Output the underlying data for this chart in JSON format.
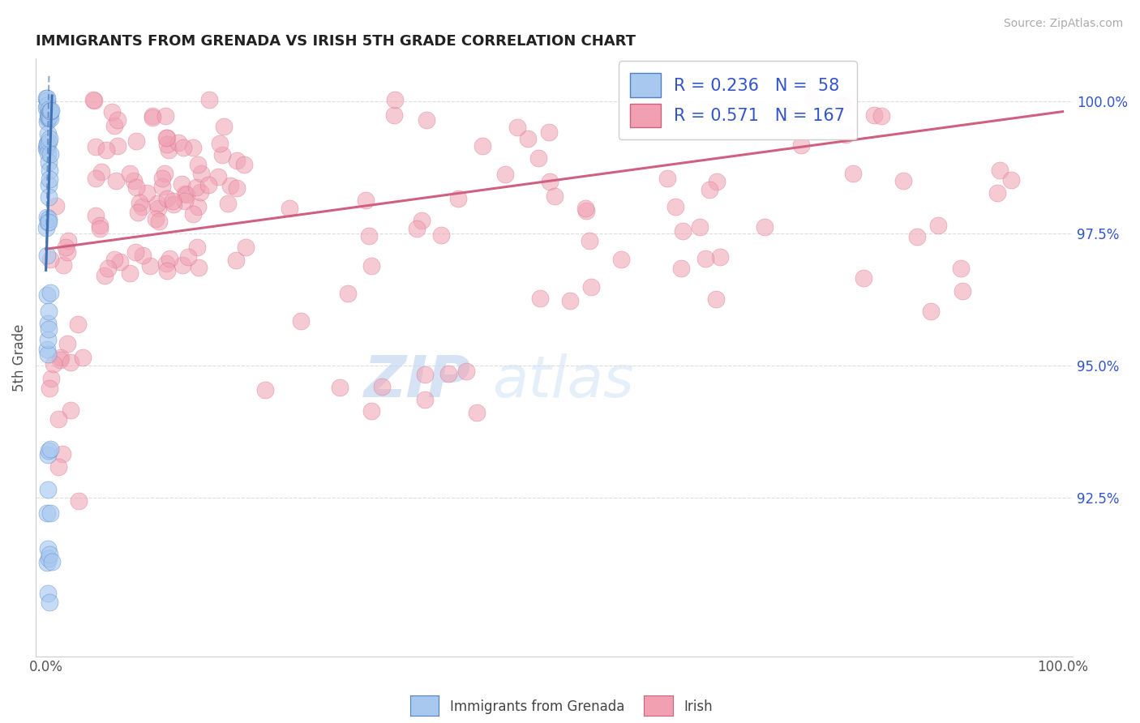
{
  "title": "IMMIGRANTS FROM GRENADA VS IRISH 5TH GRADE CORRELATION CHART",
  "source_text": "Source: ZipAtlas.com",
  "ylabel": "5th Grade",
  "right_yticks": [
    0.925,
    0.95,
    0.975,
    1.0
  ],
  "right_yticklabels": [
    "92.5%",
    "95.0%",
    "97.5%",
    "100.0%"
  ],
  "legend_label1": "Immigrants from Grenada",
  "legend_label2": "Irish",
  "R1": 0.236,
  "N1": 58,
  "R2": 0.571,
  "N2": 167,
  "color_blue": "#A8C8F0",
  "color_blue_edge": "#5080C0",
  "color_blue_line": "#4070B0",
  "color_pink": "#F0A0B0",
  "color_pink_edge": "#D06080",
  "color_pink_line": "#D06080",
  "background": "#FFFFFF",
  "grid_color": "#DDDDDD",
  "title_color": "#222222",
  "source_color": "#AAAAAA",
  "legend_text_color": "#3355CC",
  "right_tick_color": "#3355CC",
  "watermark_zip_color": "#C8D8F0",
  "watermark_atlas_color": "#D0E0F8"
}
